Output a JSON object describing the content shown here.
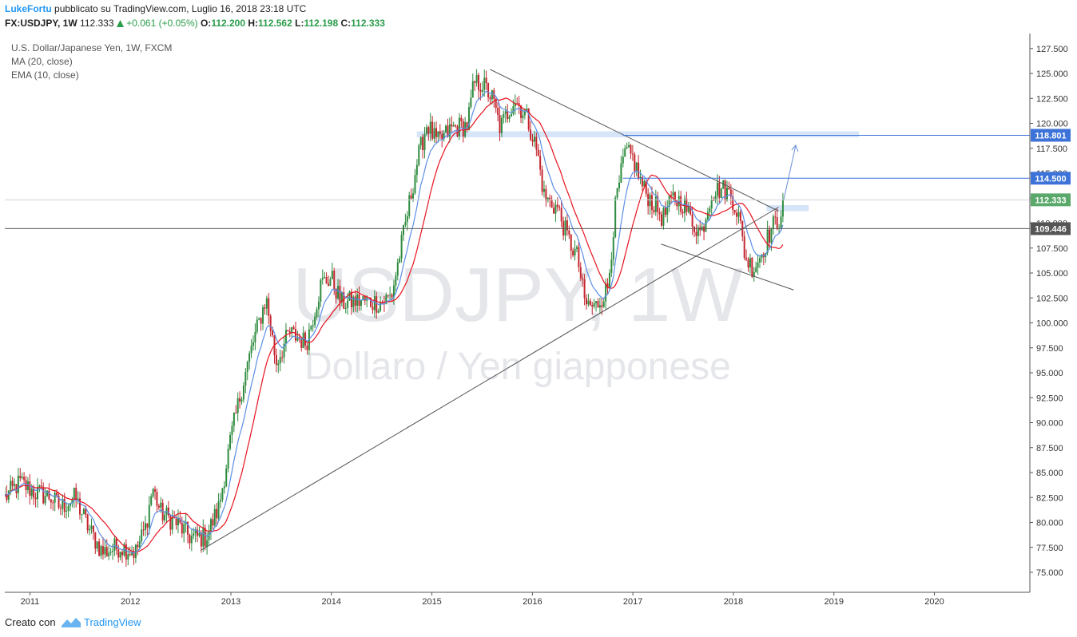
{
  "header": {
    "author": "LukeFortu",
    "published_text": "pubblicato su TradingView.com, Luglio 16, 2018 23:18 UTC",
    "symbol": "FX:USDJPY, 1W",
    "last": "112.333",
    "change": "+0.061 (+0.05%)",
    "o_label": "O:",
    "o": "112.200",
    "h_label": "H:",
    "h": "112.562",
    "l_label": "L:",
    "l": "112.198",
    "c_label": "C:",
    "c": "112.333"
  },
  "legend": {
    "instrument": "U.S. Dollar/Japanese Yen, 1W, FXCM",
    "ma": "MA (20, close)",
    "ema": "EMA (10, close)"
  },
  "watermark": {
    "symbol": "USDJPY, 1W",
    "description": "Dollaro / Yen giapponese"
  },
  "footer": {
    "made_with": "Creato con",
    "brand": "TradingView"
  },
  "colors": {
    "up": "#2e8b3e",
    "down": "#c4262e",
    "ma": "#e8121e",
    "ema": "#5b8ee6",
    "trendline": "#555555",
    "level_line": "#3d73d9"
  },
  "chart_data": {
    "type": "candlestick",
    "symbol": "FX:USDJPY",
    "timeframe": "1W",
    "x_tick_labels": [
      "2011",
      "2012",
      "2013",
      "2014",
      "2015",
      "2016",
      "2017",
      "2018",
      "2019",
      "2020"
    ],
    "y_tick_labels": [
      "127.500",
      "125.000",
      "122.500",
      "120.000",
      "117.500",
      "115.000",
      "112.500",
      "110.000",
      "107.500",
      "105.000",
      "102.500",
      "100.000",
      "97.500",
      "95.000",
      "92.500",
      "90.000",
      "87.500",
      "85.000",
      "82.500",
      "80.000",
      "77.500",
      "75.000"
    ],
    "ylim": [
      73.0,
      129.0
    ],
    "xlim": [
      2010.75,
      2020.95
    ],
    "price_labels": [
      {
        "label": "118.801",
        "value": 118.801,
        "color": "#3d73d9"
      },
      {
        "label": "114.500",
        "value": 114.5,
        "color": "#3d73d9"
      },
      {
        "label": "112.333",
        "value": 112.333,
        "color": "#5aa86a"
      },
      {
        "label": "109.446",
        "value": 109.446,
        "color": "#555555"
      }
    ],
    "trendlines": [
      {
        "from": [
          2012.7,
          77.2
        ],
        "to": [
          2018.45,
          111.6
        ]
      },
      {
        "from": [
          2015.58,
          125.4
        ],
        "to": [
          2018.45,
          111.2
        ]
      },
      {
        "from": [
          2017.28,
          107.9
        ],
        "to": [
          2018.6,
          103.3
        ]
      }
    ],
    "zones": [
      {
        "from": 2014.85,
        "to": 2019.25,
        "low": 118.6,
        "high": 119.2
      },
      {
        "from": 2018.33,
        "to": 2018.75,
        "low": 111.2,
        "high": 111.8
      }
    ],
    "projection": [
      [
        2018.5,
        112.3
      ],
      [
        2018.62,
        117.8
      ]
    ],
    "series": [
      {
        "name": "MA (20, close)",
        "type": "line"
      },
      {
        "name": "EMA (10, close)",
        "type": "line"
      }
    ],
    "anchors": [
      [
        2010.75,
        82.5
      ],
      [
        2010.9,
        84.0
      ],
      [
        2011.05,
        83.0
      ],
      [
        2011.2,
        82.6
      ],
      [
        2011.3,
        81.5
      ],
      [
        2011.45,
        82.5
      ],
      [
        2011.58,
        79.5
      ],
      [
        2011.72,
        77.0
      ],
      [
        2011.9,
        77.6
      ],
      [
        2012.05,
        77.0
      ],
      [
        2012.15,
        79.5
      ],
      [
        2012.22,
        83.5
      ],
      [
        2012.3,
        81.0
      ],
      [
        2012.45,
        80.0
      ],
      [
        2012.6,
        78.5
      ],
      [
        2012.75,
        78.5
      ],
      [
        2012.88,
        81.5
      ],
      [
        2013.0,
        88.5
      ],
      [
        2013.12,
        94.0
      ],
      [
        2013.22,
        98.0
      ],
      [
        2013.35,
        102.5
      ],
      [
        2013.45,
        96.0
      ],
      [
        2013.58,
        99.0
      ],
      [
        2013.75,
        98.0
      ],
      [
        2013.9,
        104.0
      ],
      [
        2014.0,
        104.5
      ],
      [
        2014.1,
        102.0
      ],
      [
        2014.3,
        102.2
      ],
      [
        2014.5,
        102.0
      ],
      [
        2014.6,
        102.8
      ],
      [
        2014.72,
        109.0
      ],
      [
        2014.85,
        116.0
      ],
      [
        2014.95,
        120.0
      ],
      [
        2015.05,
        118.0
      ],
      [
        2015.2,
        119.5
      ],
      [
        2015.35,
        119.8
      ],
      [
        2015.42,
        124.0
      ],
      [
        2015.5,
        124.0
      ],
      [
        2015.6,
        122.5
      ],
      [
        2015.68,
        119.5
      ],
      [
        2015.82,
        122.5
      ],
      [
        2015.95,
        120.5
      ],
      [
        2016.05,
        117.0
      ],
      [
        2016.12,
        112.5
      ],
      [
        2016.25,
        111.5
      ],
      [
        2016.35,
        108.5
      ],
      [
        2016.45,
        106.5
      ],
      [
        2016.52,
        102.0
      ],
      [
        2016.62,
        101.5
      ],
      [
        2016.75,
        103.5
      ],
      [
        2016.83,
        112.0
      ],
      [
        2016.92,
        117.0
      ],
      [
        2017.0,
        116.5
      ],
      [
        2017.1,
        113.5
      ],
      [
        2017.2,
        112.0
      ],
      [
        2017.3,
        110.5
      ],
      [
        2017.4,
        112.5
      ],
      [
        2017.5,
        112.0
      ],
      [
        2017.6,
        110.0
      ],
      [
        2017.68,
        109.0
      ],
      [
        2017.78,
        113.0
      ],
      [
        2017.88,
        113.5
      ],
      [
        2017.98,
        112.8
      ],
      [
        2018.05,
        110.8
      ],
      [
        2018.12,
        106.5
      ],
      [
        2018.2,
        105.5
      ],
      [
        2018.28,
        107.0
      ],
      [
        2018.38,
        109.5
      ],
      [
        2018.45,
        110.3
      ],
      [
        2018.5,
        112.33
      ]
    ]
  }
}
